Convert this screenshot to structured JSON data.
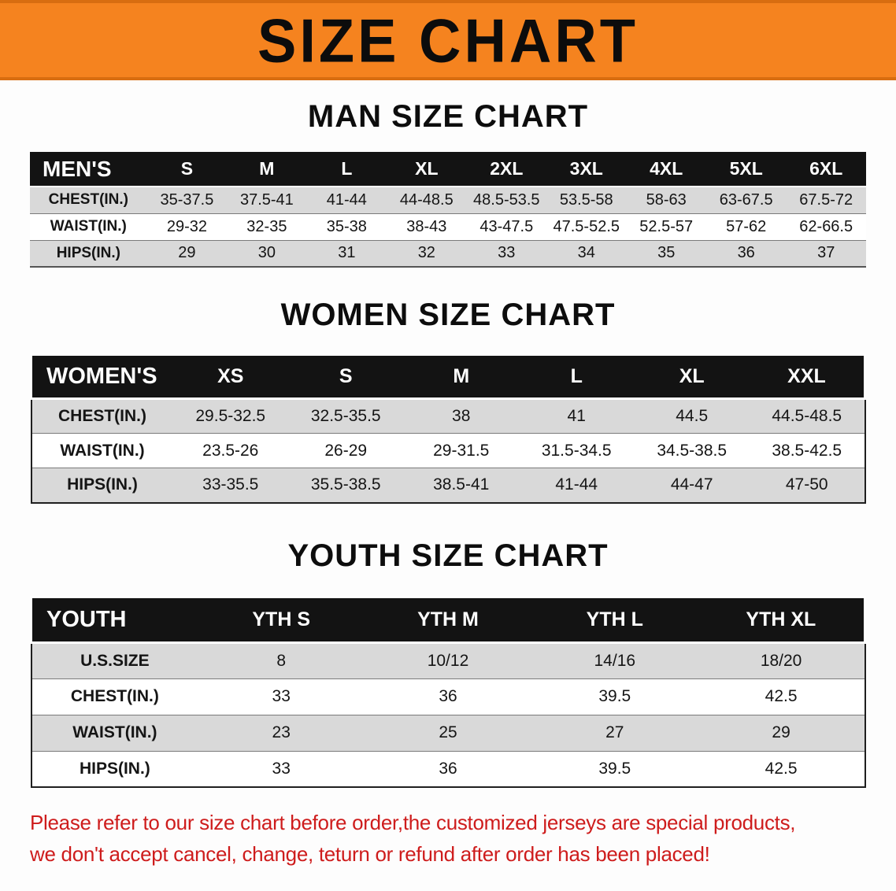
{
  "banner": {
    "title": "SIZE CHART",
    "bg_color": "#f5831f"
  },
  "colors": {
    "table_header_bg": "#131313",
    "row_alt_bg": "#d9d9d9",
    "disclaimer_text": "#ce1c1c"
  },
  "tables": [
    {
      "heading": "MAN SIZE CHART",
      "header": [
        "MEN'S",
        "S",
        "M",
        "L",
        "XL",
        "2XL",
        "3XL",
        "4XL",
        "5XL",
        "6XL"
      ],
      "rows": [
        [
          "CHEST(IN.)",
          "35-37.5",
          "37.5-41",
          "41-44",
          "44-48.5",
          "48.5-53.5",
          "53.5-58",
          "58-63",
          "63-67.5",
          "67.5-72"
        ],
        [
          "WAIST(IN.)",
          "29-32",
          "32-35",
          "35-38",
          "38-43",
          "43-47.5",
          "47.5-52.5",
          "52.5-57",
          "57-62",
          "62-66.5"
        ],
        [
          "HIPS(IN.)",
          "29",
          "30",
          "31",
          "32",
          "33",
          "34",
          "35",
          "36",
          "37"
        ]
      ]
    },
    {
      "heading": "WOMEN SIZE CHART",
      "header": [
        "WOMEN'S",
        "XS",
        "S",
        "M",
        "L",
        "XL",
        "XXL"
      ],
      "rows": [
        [
          "CHEST(IN.)",
          "29.5-32.5",
          "32.5-35.5",
          "38",
          "41",
          "44.5",
          "44.5-48.5"
        ],
        [
          "WAIST(IN.)",
          "23.5-26",
          "26-29",
          "29-31.5",
          "31.5-34.5",
          "34.5-38.5",
          "38.5-42.5"
        ],
        [
          "HIPS(IN.)",
          "33-35.5",
          "35.5-38.5",
          "38.5-41",
          "41-44",
          "44-47",
          "47-50"
        ]
      ]
    },
    {
      "heading": "YOUTH SIZE CHART",
      "header": [
        "YOUTH",
        "YTH S",
        "YTH M",
        "YTH L",
        "YTH XL"
      ],
      "rows": [
        [
          "U.S.SIZE",
          "8",
          "10/12",
          "14/16",
          "18/20"
        ],
        [
          "CHEST(IN.)",
          "33",
          "36",
          "39.5",
          "42.5"
        ],
        [
          "WAIST(IN.)",
          "23",
          "25",
          "27",
          "29"
        ],
        [
          "HIPS(IN.)",
          "33",
          "36",
          "39.5",
          "42.5"
        ]
      ]
    }
  ],
  "disclaimer": {
    "line1": "Please refer to our size chart before order,the customized jerseys are special products,",
    "line2": "we don't accept cancel, change, teturn or refund after order has been placed!"
  }
}
